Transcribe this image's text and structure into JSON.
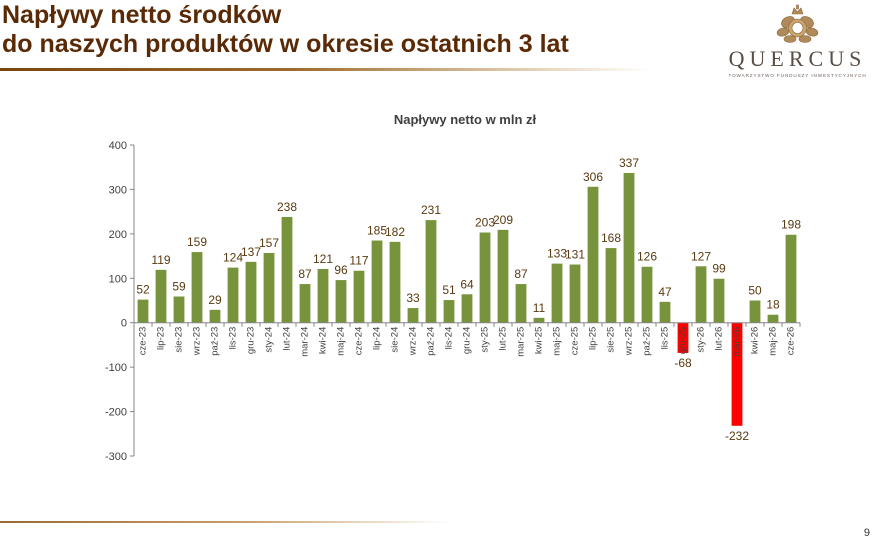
{
  "slide": {
    "title_line1": "Napływy netto środków",
    "title_line2": "do naszych produktów w okresie ostatnich 3 lat",
    "page_number": "9"
  },
  "logo": {
    "name": "QUERCUS",
    "tagline": "TOWARZYSTWO FUNDUSZY INWESTYCYJNYCH"
  },
  "colors": {
    "positive_bar": "#77933c",
    "negative_bar": "#ff0000",
    "title_text": "#5a2a06",
    "label_text": "#5a3a10"
  },
  "chart_data": {
    "type": "bar",
    "title": "Napływy netto w mln zł",
    "xlabel": "",
    "ylabel": "",
    "ylim": [
      -300,
      400
    ],
    "yticks": [
      400,
      300,
      200,
      100,
      0,
      -100,
      -200,
      -300
    ],
    "grid": false,
    "legend": "none",
    "categories": [
      "cze-23",
      "lip-23",
      "sie-23",
      "wrz-23",
      "paź-23",
      "lis-23",
      "gru-23",
      "sty-24",
      "lut-24",
      "mar-24",
      "kwi-24",
      "maj-24",
      "cze-24",
      "lip-24",
      "sie-24",
      "wrz-24",
      "paź-24",
      "lis-24",
      "gru-24",
      "sty-25",
      "lut-25",
      "mar-25",
      "kwi-25",
      "maj-25",
      "cze-25",
      "lip-25",
      "sie-25",
      "wrz-25",
      "paź-25",
      "lis-25",
      "gru-25",
      "sty-26",
      "lut-26",
      "mar-26",
      "kwi-26",
      "maj-26",
      "cze-26"
    ],
    "values": [
      52,
      119,
      59,
      159,
      29,
      124,
      137,
      157,
      238,
      87,
      121,
      96,
      117,
      185,
      182,
      33,
      231,
      51,
      64,
      203,
      209,
      87,
      11,
      133,
      131,
      306,
      168,
      337,
      126,
      47,
      -68,
      127,
      99,
      -232,
      50,
      18,
      198
    ]
  }
}
